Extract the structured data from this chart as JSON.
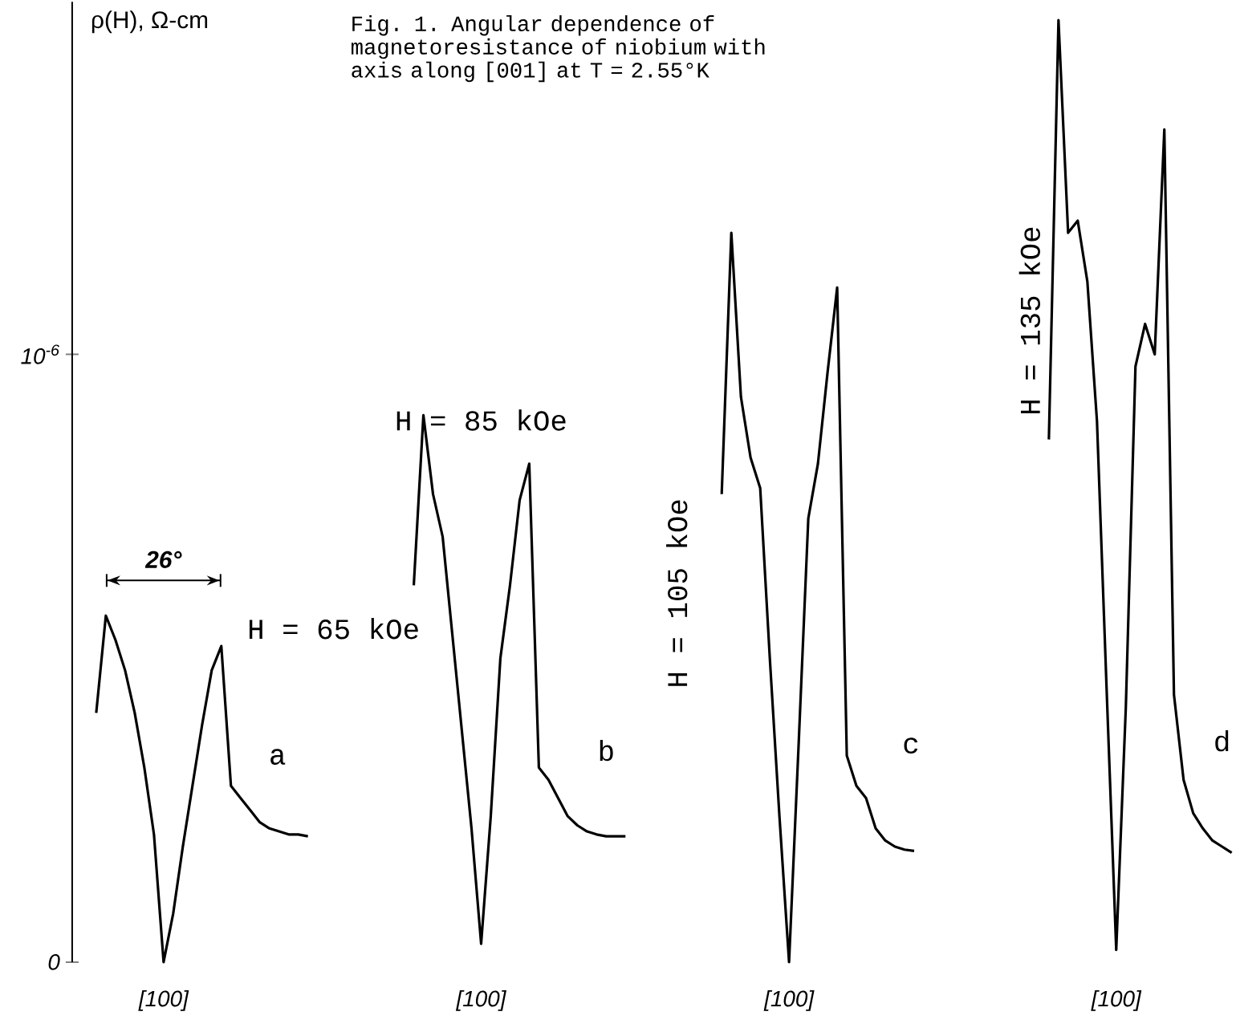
{
  "chart_data": {
    "type": "line",
    "title": "Fig. 1. Angular dependence of magnetoresistance of niobium with axis along [001] at T = 2.55°K",
    "ylabel": "ρ(H), Ω-cm",
    "categories": [
      null,
      null,
      null,
      null,
      null,
      null,
      null,
      null,
      null,
      "[100]",
      null,
      null,
      null,
      null,
      null,
      null,
      null,
      null,
      null,
      null,
      null,
      null,
      null,
      null,
      null,
      null,
      null,
      null,
      null,
      null,
      null,
      null,
      null,
      null,
      null,
      null,
      null,
      null,
      null,
      null,
      null,
      null,
      "[100]",
      null,
      null,
      null,
      null,
      null,
      null,
      null,
      null,
      null,
      null,
      null,
      null,
      null,
      null,
      null,
      null,
      null,
      null,
      null,
      null,
      null,
      null,
      null,
      null,
      null,
      null,
      null,
      null,
      null,
      null,
      null,
      "[100]",
      null,
      null,
      null,
      null,
      null,
      null,
      null,
      null,
      null,
      null,
      null,
      null,
      null,
      null,
      null,
      null,
      null,
      null,
      null,
      null,
      null,
      null,
      null,
      null,
      null,
      null,
      null,
      null,
      null,
      null,
      null,
      null,
      null,
      "[100]",
      null,
      null,
      null,
      null,
      null,
      null,
      null,
      null,
      null,
      null,
      null,
      null
    ],
    "series": [
      {
        "name": "H = 65 kOe",
        "color": "#000000",
        "values": [
          null,
          null,
          4.1e-07,
          5.7e-07,
          5.3e-07,
          4.8e-07,
          4.1e-07,
          3.2e-07,
          2.1e-07,
          0,
          8e-08,
          1.9e-07,
          2.9e-07,
          3.9e-07,
          4.8e-07,
          5.2e-07,
          2.9e-07,
          2.7e-07,
          2.5e-07,
          2.3e-07,
          2.2e-07,
          2.15e-07,
          2.1e-07,
          2.1e-07,
          2.07e-07,
          null,
          null,
          null,
          null,
          null,
          null,
          null,
          null,
          null,
          null,
          null,
          null,
          null,
          null,
          null,
          null,
          null,
          null,
          null,
          null,
          null,
          null,
          null,
          null,
          null,
          null,
          null,
          null,
          null,
          null,
          null,
          null,
          null,
          null,
          null,
          null,
          null,
          null,
          null,
          null,
          null,
          null,
          null,
          null,
          null,
          null,
          null,
          null,
          null,
          null,
          null,
          null,
          null,
          null,
          null,
          null,
          null,
          null,
          null,
          null,
          null,
          null,
          null,
          null,
          null,
          null,
          null,
          null,
          null,
          null,
          null,
          null,
          null,
          null,
          null,
          null,
          null,
          null,
          null,
          null,
          null,
          null,
          null,
          null,
          null,
          null,
          null,
          null,
          null,
          null,
          null,
          null,
          null,
          null,
          null,
          null
        ]
      },
      {
        "name": "H = 85 kOe",
        "color": "#000000",
        "values": [
          null,
          null,
          null,
          null,
          null,
          null,
          null,
          null,
          null,
          null,
          null,
          null,
          null,
          null,
          null,
          null,
          null,
          null,
          null,
          null,
          null,
          null,
          null,
          null,
          null,
          null,
          null,
          null,
          null,
          null,
          null,
          null,
          null,
          null,
          null,
          6.2e-07,
          9e-07,
          7.7e-07,
          7e-07,
          5.4e-07,
          3.8e-07,
          2.2e-07,
          3e-08,
          2.4e-07,
          5e-07,
          6.2e-07,
          7.6e-07,
          8.2e-07,
          3.2e-07,
          3e-07,
          2.7e-07,
          2.4e-07,
          2.25e-07,
          2.15e-07,
          2.1e-07,
          2.07e-07,
          2.07e-07,
          2.07e-07,
          null,
          null,
          null,
          null,
          null,
          null,
          null,
          null,
          null,
          null,
          null,
          null,
          null,
          null,
          null,
          null,
          null,
          null,
          null,
          null,
          null,
          null,
          null,
          null,
          null,
          null,
          null,
          null,
          null,
          null,
          null,
          null,
          null,
          null,
          null,
          null,
          null,
          null,
          null,
          null,
          null,
          null,
          null,
          null,
          null,
          null,
          null,
          null,
          null,
          null,
          null,
          null,
          null,
          null,
          null,
          null,
          null,
          null,
          null,
          null,
          null,
          null,
          null
        ]
      },
      {
        "name": "H = 105 kOe",
        "color": "#000000",
        "values": [
          null,
          null,
          null,
          null,
          null,
          null,
          null,
          null,
          null,
          null,
          null,
          null,
          null,
          null,
          null,
          null,
          null,
          null,
          null,
          null,
          null,
          null,
          null,
          null,
          null,
          null,
          null,
          null,
          null,
          null,
          null,
          null,
          null,
          null,
          null,
          null,
          null,
          null,
          null,
          null,
          null,
          null,
          null,
          null,
          null,
          null,
          null,
          null,
          null,
          null,
          null,
          null,
          null,
          null,
          null,
          null,
          null,
          null,
          null,
          null,
          null,
          null,
          null,
          null,
          null,
          null,
          null,
          7.7e-07,
          1.2e-06,
          9.3e-07,
          8.3e-07,
          7.8e-07,
          5e-07,
          2.4e-07,
          0,
          3.6e-07,
          7.3e-07,
          8.2e-07,
          9.7e-07,
          1.11e-06,
          3.4e-07,
          2.9e-07,
          2.7e-07,
          2.2e-07,
          2e-07,
          1.9e-07,
          1.85e-07,
          1.83e-07,
          null,
          null,
          null,
          null,
          null,
          null,
          null,
          null,
          null,
          null,
          null,
          null,
          null,
          null,
          null,
          null,
          null,
          null,
          null,
          null,
          null,
          null,
          null,
          null,
          null,
          null,
          null,
          null,
          null,
          null,
          null,
          null,
          null
        ]
      },
      {
        "name": "H = 135 kOe",
        "color": "#000000",
        "values": [
          null,
          null,
          null,
          null,
          null,
          null,
          null,
          null,
          null,
          null,
          null,
          null,
          null,
          null,
          null,
          null,
          null,
          null,
          null,
          null,
          null,
          null,
          null,
          null,
          null,
          null,
          null,
          null,
          null,
          null,
          null,
          null,
          null,
          null,
          null,
          null,
          null,
          null,
          null,
          null,
          null,
          null,
          null,
          null,
          null,
          null,
          null,
          null,
          null,
          null,
          null,
          null,
          null,
          null,
          null,
          null,
          null,
          null,
          null,
          null,
          null,
          null,
          null,
          null,
          null,
          null,
          null,
          null,
          null,
          null,
          null,
          null,
          null,
          null,
          null,
          null,
          null,
          null,
          null,
          null,
          null,
          null,
          null,
          null,
          null,
          null,
          null,
          null,
          null,
          null,
          null,
          null,
          null,
          null,
          null,
          null,
          null,
          null,
          null,
          null,
          null,
          8.6e-07,
          1.55e-06,
          1.2e-06,
          1.22e-06,
          1.12e-06,
          8.9e-07,
          4.5e-07,
          2e-08,
          4.2e-07,
          9.8e-07,
          1.05e-06,
          1e-06,
          1.37e-06,
          4.4e-07,
          3e-07,
          2.45e-07,
          2.2e-07,
          2e-07,
          1.9e-07,
          1.8e-07
        ]
      }
    ],
    "ylim": [
      0,
      1.58e-06
    ],
    "yticks": [
      {
        "value": 0,
        "label": "0"
      },
      {
        "value": 1e-06,
        "label": "10$^{-6}$"
      }
    ],
    "annotations": [
      "a",
      "b",
      "c",
      "d",
      "26°"
    ]
  }
}
